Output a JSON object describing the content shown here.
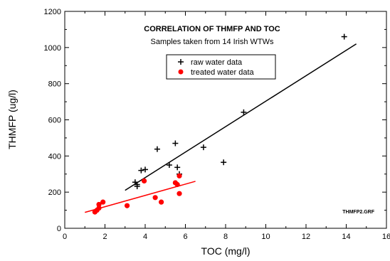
{
  "chart_data": {
    "type": "scatter",
    "title": "CORRELATION OF THMFP AND TOC",
    "subtitle": "Samples taken from 14 Irish WTWs",
    "xlabel": "TOC (mg/l)",
    "ylabel": "THMFP (ug/l)",
    "xlim": [
      0,
      16
    ],
    "ylim": [
      0,
      1200
    ],
    "xticks": [
      0,
      2,
      4,
      6,
      8,
      10,
      12,
      14,
      16
    ],
    "yticks": [
      0,
      200,
      400,
      600,
      800,
      1000,
      1200
    ],
    "xtick_labels": [
      "0",
      "2",
      "4",
      "6",
      "8",
      "10",
      "12",
      "14",
      "16"
    ],
    "ytick_labels": [
      "0",
      "200",
      "400",
      "600",
      "800",
      "1000",
      "1200"
    ],
    "grid": false,
    "legend_position": "top-center",
    "annotation": "THMFP2.GRF",
    "series": [
      {
        "name": "raw water data",
        "marker": "plus",
        "color": "#000000",
        "points": [
          [
            3.5,
            255
          ],
          [
            3.6,
            232
          ],
          [
            3.6,
            242
          ],
          [
            3.8,
            320
          ],
          [
            4.0,
            325
          ],
          [
            4.6,
            438
          ],
          [
            5.2,
            350
          ],
          [
            5.5,
            470
          ],
          [
            5.6,
            337
          ],
          [
            5.7,
            300
          ],
          [
            6.9,
            448
          ],
          [
            7.9,
            365
          ],
          [
            8.9,
            642
          ],
          [
            13.9,
            1060
          ]
        ],
        "fit": [
          [
            3.0,
            210
          ],
          [
            14.5,
            1020
          ]
        ]
      },
      {
        "name": "treated water data",
        "marker": "circle",
        "color": "#ff0000",
        "points": [
          [
            1.5,
            90
          ],
          [
            1.6,
            100
          ],
          [
            1.7,
            112
          ],
          [
            1.7,
            132
          ],
          [
            1.9,
            145
          ],
          [
            3.1,
            125
          ],
          [
            3.95,
            262
          ],
          [
            4.5,
            170
          ],
          [
            4.8,
            145
          ],
          [
            5.5,
            252
          ],
          [
            5.6,
            242
          ],
          [
            5.7,
            290
          ],
          [
            5.7,
            192
          ]
        ],
        "fit": [
          [
            1.0,
            88
          ],
          [
            6.5,
            260
          ]
        ]
      }
    ]
  }
}
